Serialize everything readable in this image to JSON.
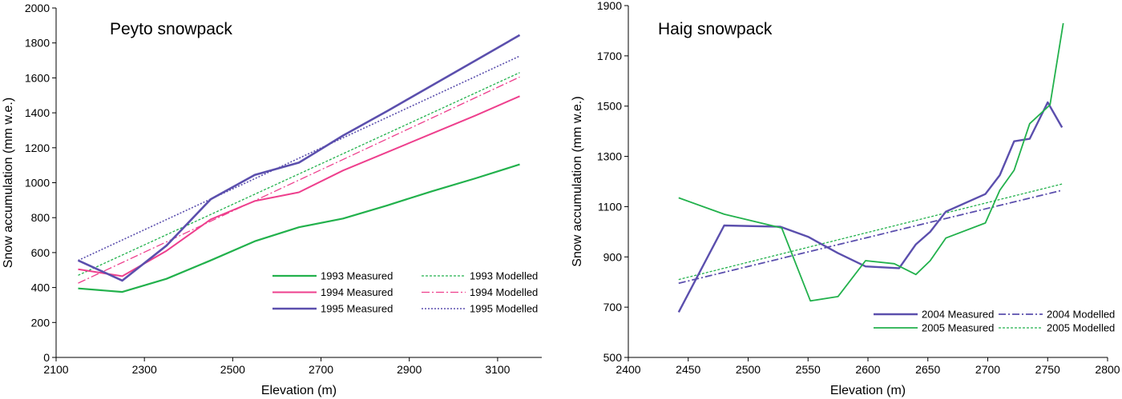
{
  "chart_data": [
    {
      "type": "line",
      "title": "Peyto snowpack",
      "xlabel": "Elevation (m)",
      "ylabel": "Snow accumulation (mm w.e.)",
      "xlim": [
        2100,
        3200
      ],
      "ylim": [
        0,
        2000
      ],
      "xticks": [
        "2100",
        "2300",
        "2500",
        "2700",
        "2900",
        "3100"
      ],
      "yticks": [
        "0",
        "200",
        "400",
        "600",
        "800",
        "1000",
        "1200",
        "1400",
        "1600",
        "1800",
        "2000"
      ],
      "grid": false,
      "legend_position": "bottom-right",
      "series": [
        {
          "name": "1993 Measured",
          "color": "#22b14c",
          "dash": "solid",
          "width": 2.2,
          "x": [
            2150,
            2250,
            2350,
            2450,
            2550,
            2650,
            2750,
            2850,
            2950,
            3050,
            3150
          ],
          "y": [
            395,
            375,
            450,
            555,
            665,
            745,
            795,
            870,
            950,
            1025,
            1105
          ]
        },
        {
          "name": "1994 Measured",
          "color": "#ee3f8d",
          "dash": "solid",
          "width": 2,
          "x": [
            2150,
            2250,
            2350,
            2450,
            2550,
            2650,
            2750,
            2850,
            2950,
            3050,
            3150
          ],
          "y": [
            505,
            465,
            610,
            790,
            895,
            945,
            1070,
            1175,
            1280,
            1385,
            1495
          ]
        },
        {
          "name": "1995 Measured",
          "color": "#5b4fad",
          "dash": "solid",
          "width": 2.6,
          "x": [
            2150,
            2250,
            2350,
            2450,
            2550,
            2650,
            2750,
            2850,
            2950,
            3050,
            3150
          ],
          "y": [
            555,
            440,
            640,
            905,
            1045,
            1115,
            1270,
            1410,
            1555,
            1700,
            1845
          ]
        },
        {
          "name": "1993 Modelled",
          "color": "#22b14c",
          "dash": "3,2",
          "width": 1.3,
          "x": [
            2150,
            3150
          ],
          "y": [
            470,
            1630
          ]
        },
        {
          "name": "1994 Modelled",
          "color": "#ee3f8d",
          "dash": "10,3,2,3",
          "width": 1.3,
          "x": [
            2150,
            3150
          ],
          "y": [
            425,
            1605
          ]
        },
        {
          "name": "1995 Modelled",
          "color": "#5b4fad",
          "dash": "2,2",
          "width": 1.6,
          "x": [
            2150,
            3150
          ],
          "y": [
            555,
            1725
          ]
        }
      ]
    },
    {
      "type": "line",
      "title": "Haig snowpack",
      "xlabel": "Elevation (m)",
      "ylabel": "Snow accumulation (mm w.e.)",
      "xlim": [
        2400,
        2800
      ],
      "ylim": [
        500,
        1900
      ],
      "xticks": [
        "2400",
        "2450",
        "2500",
        "2550",
        "2600",
        "2650",
        "2700",
        "2750",
        "2800"
      ],
      "yticks": [
        "500",
        "700",
        "900",
        "1100",
        "1300",
        "1500",
        "1700",
        "1900"
      ],
      "grid": false,
      "legend_position": "bottom-right",
      "series": [
        {
          "name": "2004 Measured",
          "color": "#5b4fad",
          "dash": "solid",
          "width": 2.4,
          "x": [
            2442,
            2480,
            2527,
            2550,
            2575,
            2598,
            2626,
            2640,
            2652,
            2665,
            2698,
            2710,
            2722,
            2735,
            2750,
            2762
          ],
          "y": [
            680,
            1025,
            1020,
            980,
            915,
            862,
            855,
            950,
            1000,
            1080,
            1150,
            1225,
            1360,
            1370,
            1515,
            1415
          ]
        },
        {
          "name": "2005 Measured",
          "color": "#22b14c",
          "dash": "solid",
          "width": 1.8,
          "x": [
            2442,
            2480,
            2528,
            2552,
            2575,
            2598,
            2622,
            2640,
            2652,
            2665,
            2698,
            2710,
            2722,
            2735,
            2752,
            2763
          ],
          "y": [
            1135,
            1070,
            1015,
            725,
            742,
            885,
            873,
            830,
            885,
            975,
            1035,
            1165,
            1245,
            1430,
            1505,
            1830
          ]
        },
        {
          "name": "2004 Modelled",
          "color": "#5b4fad",
          "dash": "9,3,2,3",
          "width": 1.8,
          "x": [
            2442,
            2762
          ],
          "y": [
            795,
            1165
          ]
        },
        {
          "name": "2005 Modelled",
          "color": "#22b14c",
          "dash": "3,2",
          "width": 1.3,
          "x": [
            2442,
            2762
          ],
          "y": [
            810,
            1190
          ]
        }
      ]
    }
  ]
}
